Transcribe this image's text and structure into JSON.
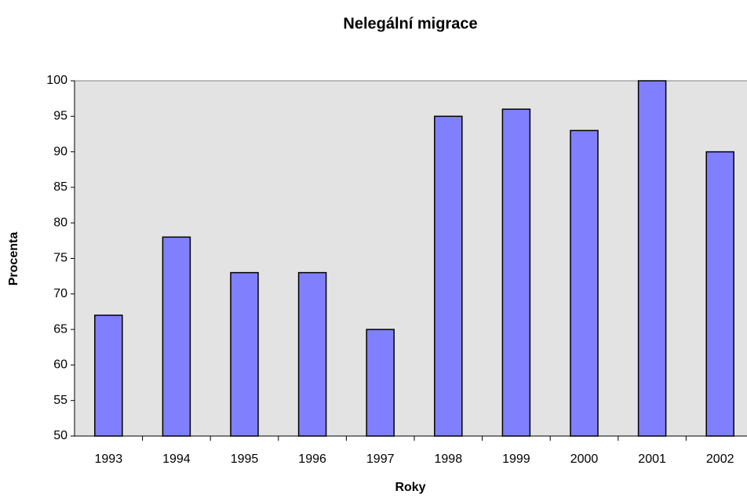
{
  "chart_data": {
    "type": "bar",
    "title": "Nelegální migrace",
    "x_label": "Roky",
    "y_label": "Procenta",
    "categories": [
      "1993",
      "1994",
      "1995",
      "1996",
      "1997",
      "1998",
      "1999",
      "2000",
      "2001",
      "2002"
    ],
    "values": [
      67,
      78,
      73,
      73,
      65,
      95,
      96,
      93,
      100,
      90
    ],
    "color": "#8080ff",
    "ylim": [
      50,
      100
    ],
    "yticks": [
      50,
      55,
      60,
      65,
      70,
      75,
      80,
      85,
      90,
      95,
      100
    ],
    "grid": false
  }
}
